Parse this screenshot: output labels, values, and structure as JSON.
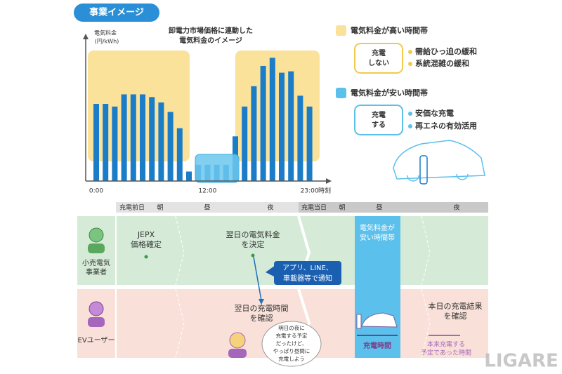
{
  "header": {
    "title": "事業イメージ"
  },
  "chart_data": {
    "type": "bar",
    "title": [
      "卸電力市場価格に連動した",
      "電気料金のイメージ"
    ],
    "y_label": [
      "電気料金",
      "(円/kWh)"
    ],
    "x_label": "時刻",
    "categories": [
      "0:00",
      null,
      null,
      null,
      null,
      null,
      null,
      null,
      null,
      null,
      null,
      null,
      "12:00",
      null,
      null,
      null,
      null,
      null,
      null,
      null,
      null,
      null,
      null,
      "23:00"
    ],
    "values": [
      57,
      57,
      55,
      64,
      64,
      64,
      62,
      58,
      51,
      39,
      7,
      12,
      12,
      12,
      12,
      33,
      55,
      70,
      85,
      91,
      80,
      81,
      63,
      55
    ],
    "color": "#1b7cc7",
    "ylim": [
      0,
      100
    ]
  },
  "legend": {
    "high": {
      "label": "電気料金が高い時間帯",
      "action": [
        "充電",
        "しない"
      ],
      "effects": [
        "需給ひっ迫の緩和",
        "系統混雑の緩和"
      ]
    },
    "low": {
      "label": "電気料金が安い時間帯",
      "action": [
        "充電",
        "する"
      ],
      "effects": [
        "安価な充電",
        "再エネの有効活用"
      ]
    }
  },
  "timeline": {
    "headers": [
      "充電前日",
      "朝",
      "昼",
      "夜",
      "充電当日",
      "朝",
      "昼",
      "夜"
    ]
  },
  "lanes": {
    "retailer": {
      "actor": [
        "小売電気",
        "事業者"
      ],
      "jepx": [
        "JEPX",
        "価格確定"
      ],
      "decide": [
        "翌日の電気料金",
        "を決定"
      ],
      "cheap": [
        "電気料金が",
        "安い時間帯"
      ],
      "notify": [
        "アプリ、LINE、",
        "車載器等で通知"
      ]
    },
    "user": {
      "actor": "EVユーザー",
      "check": [
        "翌日の充電時間",
        "を確認"
      ],
      "thought": [
        "明日の夜に",
        "充電する予定",
        "だったけど、",
        "やっぱり昼間に",
        "充電しよう"
      ],
      "charge_time": "充電時間",
      "result": [
        "本日の充電結果",
        "を確認"
      ],
      "planned": [
        "本来充電する",
        "予定であった時間"
      ]
    }
  },
  "watermark": "LIGARE"
}
